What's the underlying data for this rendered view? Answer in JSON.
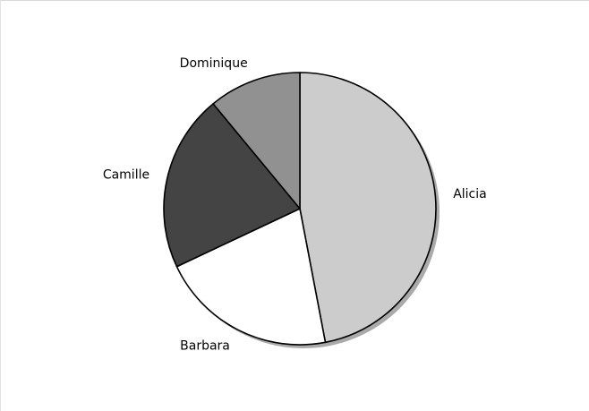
{
  "chart_data": {
    "type": "pie",
    "title": "",
    "legend": "none",
    "slices": [
      {
        "label": "Alicia",
        "value": 47,
        "color": "#cccccc"
      },
      {
        "label": "Barbara",
        "value": 21,
        "color": "#ffffff"
      },
      {
        "label": "Camille",
        "value": 21,
        "color": "#444444"
      },
      {
        "label": "Dominique",
        "value": 11,
        "color": "#919191"
      }
    ],
    "start_angle": "12 o'clock",
    "direction": "clockwise",
    "outline_color": "#000000",
    "shadow_color": "#aaaaaa"
  }
}
